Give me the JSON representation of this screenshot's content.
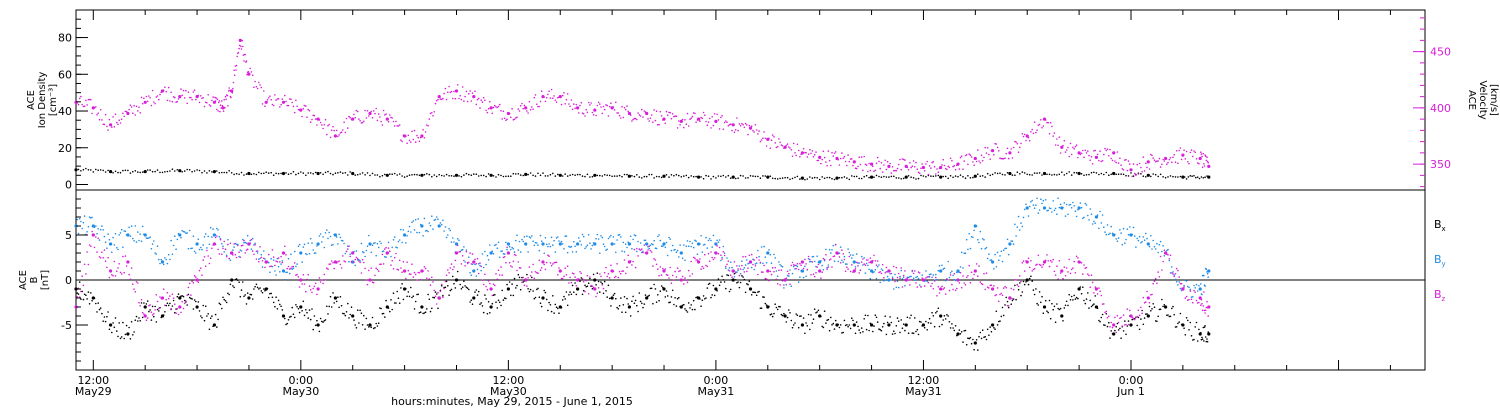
{
  "xlabel": "hours:minutes, May 29, 2015 - June  1, 2015",
  "x_ticks": [
    {
      "hour": 12,
      "line1": "12:00",
      "line2": "May29"
    },
    {
      "hour": 24,
      "line1": "0:00",
      "line2": "May30"
    },
    {
      "hour": 36,
      "line1": "12:00",
      "line2": "May30"
    },
    {
      "hour": 48,
      "line1": "0:00",
      "line2": "May31"
    },
    {
      "hour": 60,
      "line1": "12:00",
      "line2": "May31"
    },
    {
      "hour": 72,
      "line1": "0:00",
      "line2": "Jun 1"
    }
  ],
  "colors": {
    "black": "#000000",
    "magenta": "#d81ed8",
    "blue": "#1e8ce6"
  },
  "chart_data": [
    {
      "type": "scatter",
      "panel": "top",
      "y_left_label": [
        "ACE",
        "Ion Density",
        "[cm⁻³]"
      ],
      "y_right_label": [
        "ACE",
        "Velocity",
        "[km/s]"
      ],
      "left_ticks": [
        "0",
        "20",
        "40",
        "60",
        "80"
      ],
      "right_ticks": [
        "350",
        "400",
        "450"
      ],
      "ylim_left": [
        -3,
        95
      ],
      "ylim_right": [
        327,
        487
      ],
      "x_range_hours": [
        11,
        89
      ],
      "series": [
        {
          "axis": "left",
          "color_key": "black",
          "x": [
            11,
            13,
            15,
            17,
            19,
            21,
            23,
            25,
            27,
            29,
            31,
            33,
            35,
            37,
            39,
            41,
            43,
            45,
            47,
            49,
            51,
            53,
            55,
            57,
            59,
            61,
            63,
            65,
            67,
            69,
            71,
            73,
            75,
            76.5
          ],
          "y": [
            8,
            7,
            7,
            7.5,
            7,
            6,
            6,
            6,
            6,
            5,
            5,
            5,
            5,
            5.5,
            5,
            5,
            4.5,
            4.5,
            4,
            4,
            4,
            3.5,
            3.5,
            4,
            4,
            4,
            4.5,
            6,
            6,
            6,
            6,
            5,
            4,
            4
          ]
        },
        {
          "axis": "right",
          "color_key": "magenta",
          "x": [
            11,
            12,
            13,
            14,
            15,
            16,
            17,
            18,
            19,
            19.5,
            20,
            20.5,
            21,
            22,
            23,
            24,
            25,
            26,
            27,
            28,
            29,
            30,
            31,
            32,
            33,
            34,
            35,
            36,
            37,
            38,
            39,
            40,
            41,
            42,
            43,
            44,
            45,
            46,
            47,
            48,
            49,
            50,
            51,
            52,
            53,
            54,
            55,
            56,
            57,
            58,
            59,
            60,
            61,
            62,
            63,
            64,
            65,
            66,
            67,
            68,
            69,
            70,
            71,
            72,
            73,
            74,
            75,
            76,
            76.5
          ],
          "y": [
            405,
            400,
            385,
            395,
            405,
            415,
            410,
            410,
            405,
            400,
            415,
            460,
            430,
            405,
            405,
            398,
            390,
            375,
            390,
            395,
            390,
            375,
            375,
            410,
            415,
            410,
            400,
            395,
            400,
            410,
            410,
            400,
            398,
            400,
            395,
            395,
            390,
            388,
            390,
            388,
            385,
            382,
            372,
            365,
            360,
            356,
            355,
            352,
            350,
            348,
            348,
            347,
            347,
            350,
            355,
            362,
            360,
            375,
            390,
            365,
            360,
            356,
            360,
            345,
            352,
            355,
            358,
            355,
            348
          ]
        }
      ]
    },
    {
      "type": "scatter",
      "panel": "bottom",
      "y_left_label": [
        "ACE",
        "B",
        "[nT]"
      ],
      "left_ticks": [
        "-5",
        "0",
        "5"
      ],
      "ylim_left": [
        -10,
        10
      ],
      "x_range_hours": [
        11,
        89
      ],
      "legend": [
        "Bx",
        "By",
        "Bz"
      ],
      "legend_position": "right",
      "series": [
        {
          "name": "Bx",
          "color_key": "black",
          "x": [
            11,
            12,
            13,
            14,
            15,
            16,
            17,
            18,
            19,
            20,
            21,
            22,
            23,
            24,
            25,
            26,
            27,
            28,
            29,
            30,
            31,
            32,
            33,
            34,
            35,
            36,
            37,
            38,
            39,
            40,
            41,
            42,
            43,
            44,
            45,
            46,
            47,
            48,
            49,
            50,
            51,
            52,
            53,
            54,
            55,
            56,
            57,
            58,
            59,
            60,
            61,
            62,
            63,
            64,
            65,
            66,
            67,
            68,
            69,
            70,
            71,
            72,
            73,
            74,
            75,
            76,
            76.5
          ],
          "y": [
            -1,
            -2,
            -5,
            -6,
            -3,
            -4,
            -2,
            -3,
            -5,
            0,
            -2,
            -1,
            -4,
            -3,
            -5,
            -2,
            -4,
            -5,
            -3,
            -1,
            -3,
            -2,
            0,
            -2,
            -3,
            -1,
            0,
            -2,
            -3,
            -1,
            0,
            -2,
            -3,
            -2,
            -1,
            -3,
            -2,
            -1,
            0,
            -1,
            -3,
            -4,
            -5,
            -4,
            -5,
            -5,
            -5,
            -5,
            -5,
            -5,
            -4,
            -6,
            -7,
            -5,
            -2,
            0,
            -3,
            -4,
            -1,
            -3,
            -6,
            -5,
            -4,
            -3,
            -5,
            -6,
            -6
          ]
        },
        {
          "name": "By",
          "color_key": "blue",
          "x": [
            11,
            12,
            13,
            14,
            15,
            16,
            17,
            18,
            19,
            20,
            21,
            22,
            23,
            24,
            25,
            26,
            27,
            28,
            29,
            30,
            31,
            32,
            33,
            34,
            35,
            36,
            37,
            38,
            39,
            40,
            41,
            42,
            43,
            44,
            45,
            46,
            47,
            48,
            49,
            50,
            51,
            52,
            53,
            54,
            55,
            56,
            57,
            58,
            59,
            60,
            61,
            62,
            63,
            64,
            65,
            66,
            67,
            68,
            69,
            70,
            71,
            72,
            73,
            74,
            75,
            76,
            76.5
          ],
          "y": [
            6,
            6,
            4,
            5,
            5,
            2,
            5,
            4,
            5,
            3,
            4,
            2,
            1,
            3,
            4,
            5,
            2,
            4,
            3,
            5,
            6,
            6,
            4,
            1,
            3,
            4,
            4,
            4,
            4,
            4,
            4,
            4,
            4,
            4,
            4,
            3,
            4,
            4,
            1,
            2,
            3,
            0,
            1,
            2,
            3,
            2,
            1,
            0,
            0,
            0,
            1,
            1,
            6,
            2,
            4,
            8,
            8,
            8,
            8,
            7,
            5,
            5,
            4,
            3,
            -1,
            -1,
            1
          ]
        },
        {
          "name": "Bz",
          "color_key": "magenta",
          "x": [
            11,
            12,
            13,
            14,
            15,
            16,
            17,
            18,
            19,
            20,
            21,
            22,
            23,
            24,
            25,
            26,
            27,
            28,
            29,
            30,
            31,
            32,
            33,
            34,
            35,
            36,
            37,
            38,
            39,
            40,
            41,
            42,
            43,
            44,
            45,
            46,
            47,
            48,
            49,
            50,
            51,
            52,
            53,
            54,
            55,
            56,
            57,
            58,
            59,
            60,
            61,
            62,
            63,
            64,
            65,
            66,
            67,
            68,
            69,
            70,
            71,
            72,
            73,
            74,
            75,
            76,
            76.5
          ],
          "y": [
            -3,
            5,
            1,
            2,
            -4,
            -2,
            -3,
            0,
            4,
            3,
            4,
            2,
            3,
            0,
            -1,
            2,
            3,
            0,
            3,
            1,
            1,
            -2,
            3,
            2,
            -1,
            3,
            0,
            2,
            1,
            0,
            -1,
            1,
            2,
            3,
            1,
            0,
            2,
            3,
            1,
            2,
            1,
            0,
            2,
            1,
            3,
            1,
            2,
            1,
            0,
            0,
            -1,
            0,
            1,
            -1,
            -2,
            2,
            2,
            1,
            2,
            -1,
            -5,
            -4,
            -2,
            3,
            -1,
            -2,
            -3
          ]
        }
      ]
    }
  ]
}
